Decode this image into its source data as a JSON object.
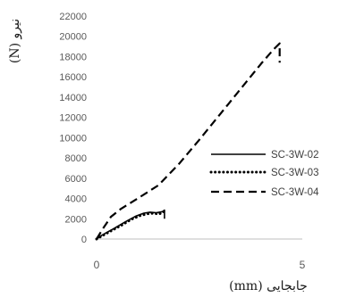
{
  "chart_data": {
    "type": "line",
    "title": "",
    "xlabel": "جابجایی (mm)",
    "ylabel": "نیرو (N)",
    "xlim": [
      0,
      5
    ],
    "ylim": [
      0,
      22000
    ],
    "x_ticks": [
      0,
      5
    ],
    "y_ticks": [
      0,
      2000,
      4000,
      6000,
      8000,
      10000,
      12000,
      14000,
      16000,
      18000,
      20000,
      22000
    ],
    "grid": false,
    "legend_position": "right",
    "series": [
      {
        "name": "SC-3W-02",
        "style": "solid",
        "color": "#000000",
        "points": [
          [
            0,
            0
          ],
          [
            0.1,
            300
          ],
          [
            0.25,
            650
          ],
          [
            0.45,
            1100
          ],
          [
            0.7,
            1700
          ],
          [
            0.95,
            2250
          ],
          [
            1.15,
            2550
          ],
          [
            1.3,
            2650
          ],
          [
            1.45,
            2600
          ],
          [
            1.6,
            2700
          ],
          [
            1.65,
            2850
          ],
          [
            1.65,
            2000
          ]
        ]
      },
      {
        "name": "SC-3W-03",
        "style": "dotted",
        "color": "#000000",
        "points": [
          [
            0,
            0
          ],
          [
            0.15,
            350
          ],
          [
            0.35,
            800
          ],
          [
            0.6,
            1350
          ],
          [
            0.85,
            1950
          ],
          [
            1.05,
            2300
          ],
          [
            1.25,
            2500
          ],
          [
            1.4,
            2550
          ],
          [
            1.5,
            2450
          ],
          [
            1.6,
            2600
          ],
          [
            1.65,
            2750
          ]
        ]
      },
      {
        "name": "SC-3W-04",
        "style": "dashed",
        "color": "#000000",
        "points": [
          [
            0,
            0
          ],
          [
            0.15,
            1000
          ],
          [
            0.35,
            2200
          ],
          [
            0.6,
            3000
          ],
          [
            1.0,
            4000
          ],
          [
            1.5,
            5300
          ],
          [
            2.0,
            7400
          ],
          [
            2.5,
            9800
          ],
          [
            3.0,
            12300
          ],
          [
            3.5,
            14800
          ],
          [
            4.0,
            17300
          ],
          [
            4.3,
            18700
          ],
          [
            4.45,
            19300
          ],
          [
            4.45,
            17400
          ]
        ]
      }
    ]
  }
}
